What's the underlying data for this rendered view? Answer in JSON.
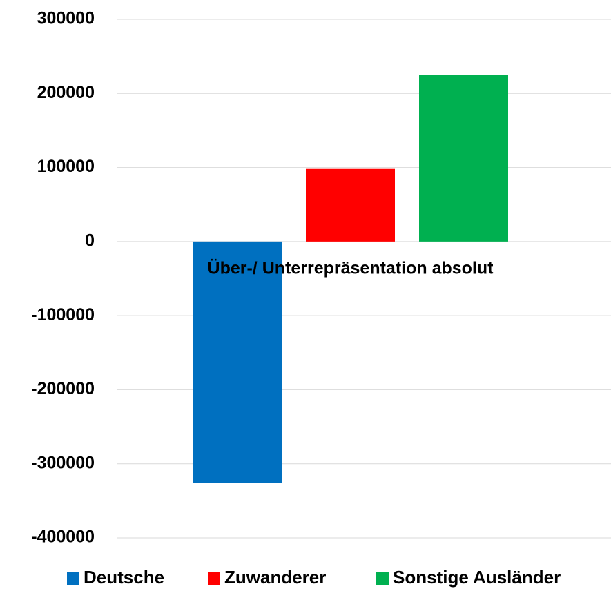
{
  "chart_data": {
    "type": "bar",
    "categories": [
      "Über-/ Unterrepräsentation absolut"
    ],
    "series": [
      {
        "name": "Deutsche",
        "color": "#0070c0",
        "values": [
          -326000
        ]
      },
      {
        "name": "Zuwanderer",
        "color": "#ff0000",
        "values": [
          98000
        ]
      },
      {
        "name": "Sonstige Ausländer",
        "color": "#00b050",
        "values": [
          225000
        ]
      }
    ],
    "ylim": [
      -400000,
      300000
    ],
    "yticks": [
      -400000,
      -300000,
      -200000,
      -100000,
      0,
      100000,
      200000,
      300000
    ],
    "grid": true,
    "legend": "bottom"
  }
}
